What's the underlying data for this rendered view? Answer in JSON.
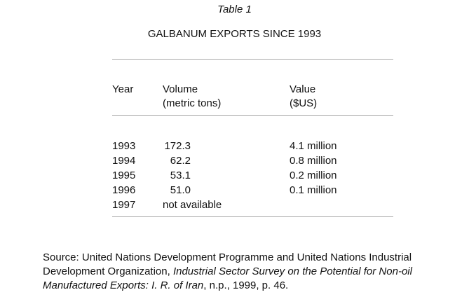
{
  "table": {
    "label": "Table 1",
    "title": "GALBANUM EXPORTS SINCE 1993",
    "headers": {
      "year": "Year",
      "volume": "Volume",
      "volume_unit": "(metric tons)",
      "value": "Value",
      "value_unit": "($US)"
    },
    "rows": [
      {
        "year": "1993",
        "volume": "172.3",
        "value": "4.1 million"
      },
      {
        "year": "1994",
        "volume": "62.2",
        "value": "0.8 million"
      },
      {
        "year": "1995",
        "volume": "53.1",
        "value": "0.2 million"
      },
      {
        "year": "1996",
        "volume": "51.0",
        "value": "0.1 million"
      },
      {
        "year": "1997",
        "volume": "not available",
        "value": ""
      }
    ]
  },
  "source": {
    "prefix": "Source: United Nations Development Programme and United Nations Industrial Development Organization, ",
    "title": "Industrial Sector Survey on the Potential for Non-oil Manufactured Exports: I. R. of Iran",
    "suffix": ", n.p., 1999, p. 46."
  }
}
